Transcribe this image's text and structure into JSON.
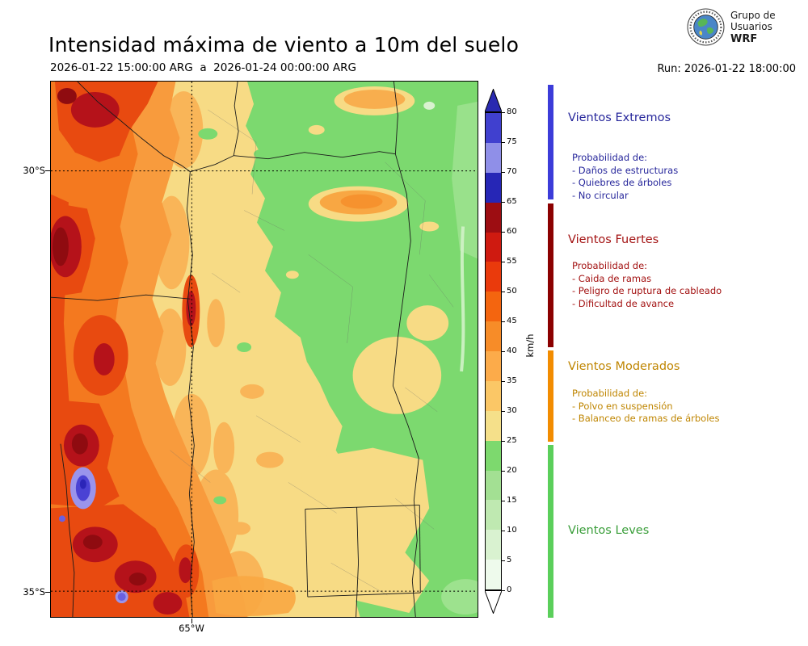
{
  "header": {
    "title": "Intensidad máxima de viento a 10m del suelo",
    "period": "2026-01-22 15:00:00 ARG  a  2026-01-24 00:00:00 ARG",
    "run": "Run: 2026-01-22 18:00:00",
    "logo_line1": "Grupo de",
    "logo_line2": "Usuarios",
    "logo_line3": "WRF"
  },
  "map": {
    "ytick_top": "30°S",
    "ytick_bottom": "35°S",
    "xtick": "65°W"
  },
  "colorbar": {
    "unit": "km/h",
    "ticks": [
      "80",
      "75",
      "70",
      "65",
      "60",
      "55",
      "50",
      "45",
      "40",
      "35",
      "30",
      "25",
      "20",
      "15",
      "10",
      "5",
      "0"
    ],
    "segment_colors_top_to_bottom": [
      "#4040cf",
      "#8f8fe8",
      "#2626b6",
      "#9d0d12",
      "#cf1a10",
      "#ea3a0c",
      "#f4650f",
      "#f78c28",
      "#fcab4a",
      "#fbc766",
      "#f5e08a",
      "#7dd96e",
      "#a3e093",
      "#bfe9b1",
      "#d9f2d0",
      "#eefaec"
    ],
    "arrow_top_color": "#2a2ab0",
    "arrow_bottom_color": "#ffffff"
  },
  "legend": {
    "categories": [
      {
        "title": "Vientos Extremos",
        "text_color": "#26269b",
        "strip_color": "#3c3cd9",
        "lines": [
          "Probabilidad de:",
          "- Daños de estructuras",
          "- Quiebres de árboles",
          "- No circular"
        ]
      },
      {
        "title": "Vientos Fuertes",
        "text_color": "#a31212",
        "strip_color": "#8b0000",
        "lines": [
          "Probabilidad de:",
          "- Caida de ramas",
          "- Peligro de ruptura de cableado",
          "- Dificultad de avance"
        ]
      },
      {
        "title": "Vientos Moderados",
        "text_color": "#bf8500",
        "strip_color": "#f28c00",
        "lines": [
          "Probabilidad de:",
          "- Polvo en suspensión",
          "- Balanceo de ramas de árboles"
        ]
      },
      {
        "title": "Vientos Leves",
        "text_color": "#3a9e3a",
        "strip_color": "#5bcf5b",
        "lines": []
      }
    ]
  }
}
